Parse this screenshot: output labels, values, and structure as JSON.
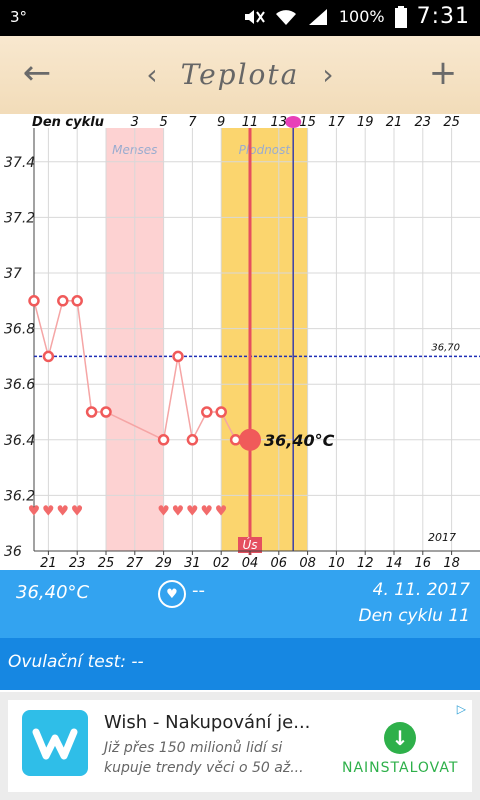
{
  "status_bar": {
    "signal_text": "3°",
    "battery": "100%",
    "time": "7:31"
  },
  "header": {
    "title": "Teplota",
    "back_icon": "back-arrow-icon",
    "prev_icon": "chevron-left-icon",
    "next_icon": "chevron-right-icon",
    "add_icon": "plus-icon",
    "background": "#f5e3c6"
  },
  "chart_data": {
    "type": "line",
    "top_axis_label": "Den cyklu",
    "top_ticks": [
      "3",
      "5",
      "7",
      "9",
      "11",
      "13",
      "15",
      "17",
      "19",
      "21",
      "23",
      "25"
    ],
    "bottom_ticks": [
      "21",
      "23",
      "25",
      "27",
      "29",
      "31",
      "02",
      "04",
      "06",
      "08",
      "10",
      "12",
      "14",
      "16",
      "18"
    ],
    "y_ticks": [
      "37.4",
      "37.2",
      "37",
      "36.8",
      "36.6",
      "36.4",
      "36.2",
      "36"
    ],
    "ylim": [
      36.0,
      37.5
    ],
    "x_dates": [
      "10-20",
      "10-21",
      "10-22",
      "10-23",
      "10-24",
      "10-25",
      "10-29",
      "10-30",
      "10-31",
      "11-01",
      "11-02",
      "11-03",
      "11-04"
    ],
    "temperatures": [
      36.9,
      36.7,
      36.9,
      36.9,
      36.5,
      36.5,
      36.4,
      36.7,
      36.4,
      36.5,
      36.5,
      36.4,
      36.4
    ],
    "current_point": {
      "date": "11-04",
      "value": 36.4,
      "label": "36,40°C"
    },
    "coverline": {
      "value": 36.7,
      "label": "36,70"
    },
    "menses_band": {
      "label": "Menses",
      "from": "10-25",
      "to": "10-29"
    },
    "fertile_band": {
      "label": "Plodnost",
      "from": "11-02",
      "to": "11-08"
    },
    "menses_hearts_1": [
      "10-20",
      "10-21",
      "10-22",
      "10-23"
    ],
    "menses_hearts_2": [
      "10-29",
      "10-30",
      "10-31",
      "11-01",
      "11-02"
    ],
    "today_marker_date": "11-04",
    "ovulation_marker_date": "11-07",
    "today_tag": "Ús",
    "year_label": "2017",
    "colors": {
      "menses": "#fdd2d2",
      "fertile": "#fbd56e",
      "line": "#f5a5a5",
      "point": "#f05a5a",
      "today_line": "#e54f5f",
      "ovulation_line": "#3a3fa8",
      "coverline": "#1f2fb5"
    }
  },
  "info_bar": {
    "temperature": "36,40°C",
    "heart_icon": "heart-circle-icon",
    "heart_value": "--",
    "date": "4. 11. 2017",
    "cycle_day": "Den cyklu 11"
  },
  "ovulation": {
    "label": "Ovulační test: --"
  },
  "ad": {
    "title": "Wish - Nakupování je...",
    "desc_line1": "Již přes 150 milionů lidí si",
    "desc_line2": "kupuje trendy věci o 50 až...",
    "install": "NAINSTALOVAT",
    "logo_icon": "wish-logo-icon",
    "install_icon": "download-icon",
    "choices_icon": "ad-choices-icon"
  }
}
